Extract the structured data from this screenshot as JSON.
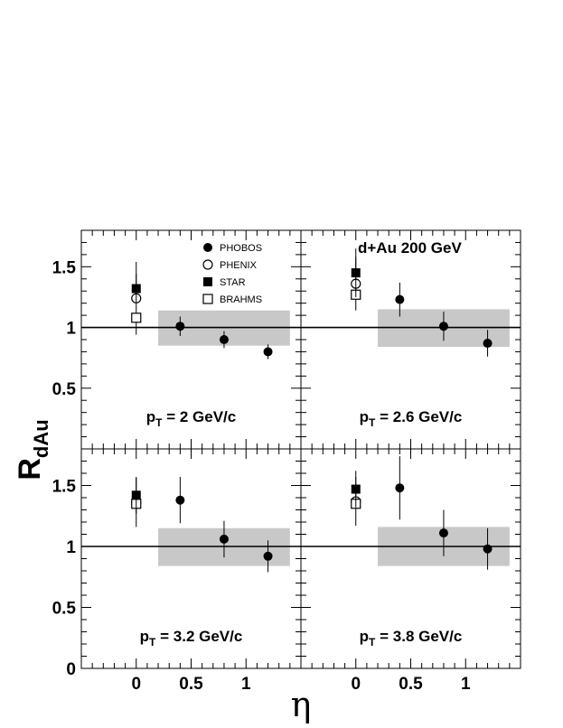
{
  "chart_data": {
    "type": "scatter",
    "title": "d+Au  200 GeV",
    "xlabel": "η",
    "ylabel": "R",
    "ylabel_sub": "dAu",
    "xlim": [
      -0.5,
      1.5
    ],
    "ylim": [
      0,
      1.8
    ],
    "x_ticks": [
      "0",
      "0.5",
      "1"
    ],
    "y_ticks": [
      "0",
      "0.5",
      "1",
      "1.5"
    ],
    "reference_line": 1,
    "legend": {
      "placement": "top-left panel, upper center",
      "entries": [
        {
          "name": "PHOBOS",
          "marker": "filled-circle"
        },
        {
          "name": "PHENIX",
          "marker": "open-circle"
        },
        {
          "name": "STAR",
          "marker": "filled-square"
        },
        {
          "name": "BRAHMS",
          "marker": "open-square"
        }
      ]
    },
    "panels": [
      {
        "label_prefix": "p",
        "label_sub": "T",
        "label_suffix": " = 2 GeV/c",
        "band": {
          "x0": 0.2,
          "x1": 1.4,
          "y0": 0.85,
          "y1": 1.14
        },
        "series": [
          {
            "name": "PHOBOS",
            "points": [
              {
                "x": 0.4,
                "y": 1.01,
                "err": 0.08
              },
              {
                "x": 0.8,
                "y": 0.9,
                "err": 0.07
              },
              {
                "x": 1.2,
                "y": 0.8,
                "err": 0.06
              }
            ]
          },
          {
            "name": "PHENIX",
            "points": [
              {
                "x": 0.0,
                "y": 1.24,
                "err": 0.3
              }
            ]
          },
          {
            "name": "STAR",
            "points": [
              {
                "x": 0.0,
                "y": 1.32,
                "err": 0.12
              }
            ]
          },
          {
            "name": "BRAHMS",
            "points": [
              {
                "x": 0.0,
                "y": 1.08,
                "err": 0.0
              }
            ]
          }
        ]
      },
      {
        "label_prefix": "p",
        "label_sub": "T",
        "label_suffix": " = 2.6 GeV/c",
        "band": {
          "x0": 0.2,
          "x1": 1.4,
          "y0": 0.84,
          "y1": 1.15
        },
        "series": [
          {
            "name": "PHOBOS",
            "points": [
              {
                "x": 0.4,
                "y": 1.23,
                "err": 0.14
              },
              {
                "x": 0.8,
                "y": 1.01,
                "err": 0.12
              },
              {
                "x": 1.2,
                "y": 0.87,
                "err": 0.11
              }
            ]
          },
          {
            "name": "PHENIX",
            "points": [
              {
                "x": 0.0,
                "y": 1.36,
                "err": 0.22
              }
            ]
          },
          {
            "name": "STAR",
            "points": [
              {
                "x": 0.0,
                "y": 1.45,
                "err": 0.2
              }
            ]
          },
          {
            "name": "BRAHMS",
            "points": [
              {
                "x": 0.0,
                "y": 1.27,
                "err": 0.0
              }
            ]
          }
        ]
      },
      {
        "label_prefix": "p",
        "label_sub": "T",
        "label_suffix": " = 3.2 GeV/c",
        "band": {
          "x0": 0.2,
          "x1": 1.4,
          "y0": 0.84,
          "y1": 1.15
        },
        "series": [
          {
            "name": "PHOBOS",
            "points": [
              {
                "x": 0.4,
                "y": 1.38,
                "err": 0.19
              },
              {
                "x": 0.8,
                "y": 1.06,
                "err": 0.15
              },
              {
                "x": 1.2,
                "y": 0.92,
                "err": 0.13
              }
            ]
          },
          {
            "name": "PHENIX",
            "points": [
              {
                "x": 0.0,
                "y": 1.36,
                "err": 0.2
              }
            ]
          },
          {
            "name": "STAR",
            "points": [
              {
                "x": 0.0,
                "y": 1.42,
                "err": 0.15
              }
            ]
          },
          {
            "name": "BRAHMS",
            "points": [
              {
                "x": 0.0,
                "y": 1.35,
                "err": 0.0
              }
            ]
          }
        ]
      },
      {
        "label_prefix": "p",
        "label_sub": "T",
        "label_suffix": " = 3.8 GeV/c",
        "band": {
          "x0": 0.2,
          "x1": 1.4,
          "y0": 0.84,
          "y1": 1.16
        },
        "series": [
          {
            "name": "PHOBOS",
            "points": [
              {
                "x": 0.4,
                "y": 1.48,
                "err": 0.26
              },
              {
                "x": 0.8,
                "y": 1.11,
                "err": 0.19
              },
              {
                "x": 1.2,
                "y": 0.98,
                "err": 0.17
              }
            ]
          },
          {
            "name": "PHENIX",
            "points": [
              {
                "x": 0.0,
                "y": 1.37,
                "err": 0.2
              }
            ]
          },
          {
            "name": "STAR",
            "points": [
              {
                "x": 0.0,
                "y": 1.47,
                "err": 0.15
              }
            ]
          },
          {
            "name": "BRAHMS",
            "points": [
              {
                "x": 0.0,
                "y": 1.35,
                "err": 0.0
              }
            ]
          }
        ]
      }
    ]
  }
}
